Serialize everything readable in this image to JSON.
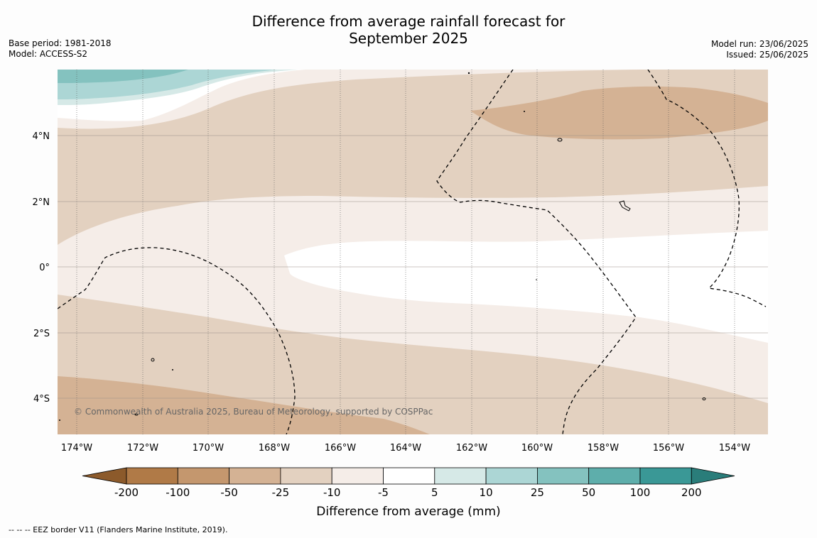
{
  "title_line1": "Difference from average rainfall forecast for",
  "title_line2": "September 2025",
  "base_period": "Base period: 1981-2018",
  "model": "Model: ACCESS-S2",
  "model_run": "Model run: 23/06/2025",
  "issued": "Issued: 25/06/2025",
  "lat_labels": [
    "4°N",
    "2°N",
    "0°",
    "2°S",
    "4°S"
  ],
  "lon_labels": [
    "174°W",
    "172°W",
    "170°W",
    "168°W",
    "166°W",
    "164°W",
    "162°W",
    "160°W",
    "158°W",
    "156°W",
    "154°W"
  ],
  "copyright": "© Commonwealth of Australia 2025, Bureau of Meteorology, supported by COSPPac",
  "colorbar": {
    "title": "Difference from average (mm)",
    "ticks": [
      "-200",
      "-100",
      "-50",
      "-25",
      "-10",
      "-5",
      "5",
      "10",
      "25",
      "50",
      "100",
      "200"
    ],
    "colors": [
      "#8c5a2b",
      "#b07a47",
      "#c4976e",
      "#d4b294",
      "#e3d1c0",
      "#f5ede8",
      "#ffffff",
      "#d6e9e7",
      "#acd6d5",
      "#84c2bf",
      "#5eaeab",
      "#3a9896",
      "#2a7d7a"
    ]
  },
  "footnote": "--  --  -- EEZ border V11 (Flanders Marine Institute, 2019)."
}
